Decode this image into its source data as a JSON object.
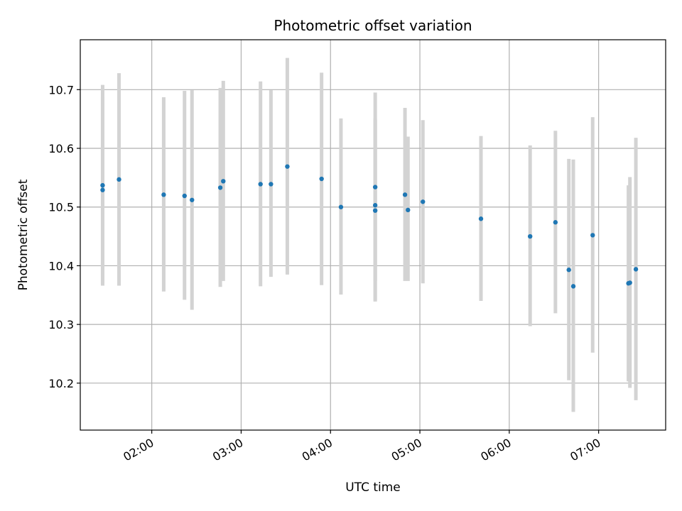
{
  "chart_data": {
    "type": "scatter",
    "title": "Photometric offset variation",
    "xlabel": "UTC time",
    "ylabel": "Photometric offset",
    "x_unit": "UTC time (HH:MM)",
    "xlim": [
      "01:12",
      "07:45"
    ],
    "ylim": [
      10.12,
      10.785
    ],
    "x_ticks": [
      "02:00",
      "03:00",
      "04:00",
      "05:00",
      "06:00",
      "07:00"
    ],
    "y_ticks": [
      "10.2",
      "10.3",
      "10.4",
      "10.5",
      "10.6",
      "10.7"
    ],
    "grid": true,
    "error_bar_color": "#d3d3d3",
    "point_color": "#1f77b4",
    "points": [
      {
        "x": "01:27",
        "y": 10.529,
        "ylow": 10.37,
        "yhigh": 10.688
      },
      {
        "x": "01:27",
        "y": 10.537,
        "ylow": 10.366,
        "yhigh": 10.708
      },
      {
        "x": "01:38",
        "y": 10.547,
        "ylow": 10.366,
        "yhigh": 10.728
      },
      {
        "x": "02:08",
        "y": 10.521,
        "ylow": 10.356,
        "yhigh": 10.687
      },
      {
        "x": "02:22",
        "y": 10.519,
        "ylow": 10.342,
        "yhigh": 10.698
      },
      {
        "x": "02:27",
        "y": 10.512,
        "ylow": 10.325,
        "yhigh": 10.699
      },
      {
        "x": "02:46",
        "y": 10.533,
        "ylow": 10.364,
        "yhigh": 10.703
      },
      {
        "x": "02:48",
        "y": 10.544,
        "ylow": 10.374,
        "yhigh": 10.715
      },
      {
        "x": "03:13",
        "y": 10.539,
        "ylow": 10.365,
        "yhigh": 10.714
      },
      {
        "x": "03:20",
        "y": 10.539,
        "ylow": 10.381,
        "yhigh": 10.699
      },
      {
        "x": "03:31",
        "y": 10.569,
        "ylow": 10.385,
        "yhigh": 10.754
      },
      {
        "x": "03:54",
        "y": 10.548,
        "ylow": 10.367,
        "yhigh": 10.729
      },
      {
        "x": "04:07",
        "y": 10.5,
        "ylow": 10.351,
        "yhigh": 10.651
      },
      {
        "x": "04:30",
        "y": 10.534,
        "ylow": 10.374,
        "yhigh": 10.695
      },
      {
        "x": "04:30",
        "y": 10.503,
        "ylow": 10.339,
        "yhigh": 10.651
      },
      {
        "x": "04:30",
        "y": 10.494,
        "ylow": 10.341,
        "yhigh": 10.648
      },
      {
        "x": "04:50",
        "y": 10.521,
        "ylow": 10.374,
        "yhigh": 10.669
      },
      {
        "x": "04:52",
        "y": 10.495,
        "ylow": 10.374,
        "yhigh": 10.62
      },
      {
        "x": "05:02",
        "y": 10.509,
        "ylow": 10.37,
        "yhigh": 10.648
      },
      {
        "x": "05:41",
        "y": 10.48,
        "ylow": 10.34,
        "yhigh": 10.621
      },
      {
        "x": "06:14",
        "y": 10.45,
        "ylow": 10.297,
        "yhigh": 10.605
      },
      {
        "x": "06:31",
        "y": 10.474,
        "ylow": 10.319,
        "yhigh": 10.63
      },
      {
        "x": "06:40",
        "y": 10.393,
        "ylow": 10.205,
        "yhigh": 10.582
      },
      {
        "x": "06:43",
        "y": 10.365,
        "ylow": 10.151,
        "yhigh": 10.581
      },
      {
        "x": "06:56",
        "y": 10.452,
        "ylow": 10.252,
        "yhigh": 10.653
      },
      {
        "x": "07:20",
        "y": 10.37,
        "ylow": 10.203,
        "yhigh": 10.537
      },
      {
        "x": "07:21",
        "y": 10.371,
        "ylow": 10.192,
        "yhigh": 10.551
      },
      {
        "x": "07:25",
        "y": 10.394,
        "ylow": 10.171,
        "yhigh": 10.618
      }
    ]
  }
}
